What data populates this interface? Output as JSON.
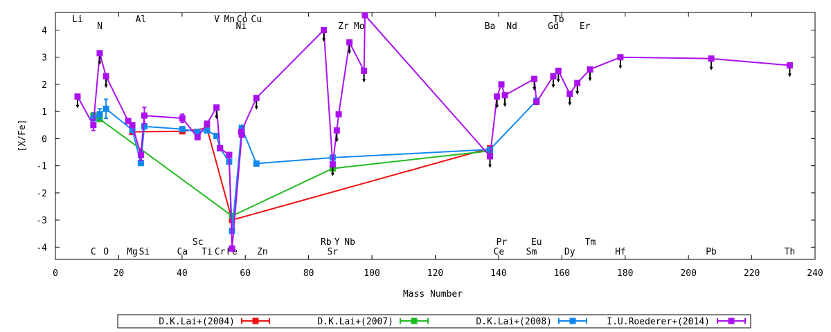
{
  "chart_data": {
    "type": "line",
    "xlabel": "Mass Number",
    "ylabel": "[X/Fe]",
    "xlim": [
      0,
      240
    ],
    "ylim": [
      -4.45,
      4.65
    ],
    "x_ticks": [
      0,
      20,
      40,
      60,
      80,
      100,
      120,
      140,
      160,
      180,
      200,
      220,
      240
    ],
    "y_ticks": [
      -4,
      -3,
      -2,
      -1,
      0,
      1,
      2,
      3,
      4
    ],
    "grid": false,
    "legend_position": "bottom",
    "element_labels_top": [
      {
        "label": "Li",
        "x": 7,
        "row": 1
      },
      {
        "label": "N",
        "x": 14,
        "row": 2
      },
      {
        "label": "Al",
        "x": 27,
        "row": 1
      },
      {
        "label": "V",
        "x": 51,
        "row": 1
      },
      {
        "label": "Mn",
        "x": 55,
        "row": 1
      },
      {
        "label": "Co",
        "x": 59,
        "row": 1
      },
      {
        "label": "Cu",
        "x": 63.5,
        "row": 1
      },
      {
        "label": "Ni",
        "x": 58.7,
        "row": 2
      },
      {
        "label": "Zr",
        "x": 91,
        "row": 2
      },
      {
        "label": "Mo",
        "x": 96,
        "row": 2
      },
      {
        "label": "Ba",
        "x": 137.3,
        "row": 2
      },
      {
        "label": "Nd",
        "x": 144.2,
        "row": 2
      },
      {
        "label": "Tb",
        "x": 159,
        "row": 1
      },
      {
        "label": "Gd",
        "x": 157.3,
        "row": 2
      },
      {
        "label": "Er",
        "x": 167.3,
        "row": 2
      }
    ],
    "element_labels_bottom": [
      {
        "label": "Sc",
        "x": 45,
        "row": 1
      },
      {
        "label": "Rb",
        "x": 85.5,
        "row": 1
      },
      {
        "label": "Y",
        "x": 89,
        "row": 1
      },
      {
        "label": "Nb",
        "x": 93,
        "row": 1
      },
      {
        "label": "Pr",
        "x": 141,
        "row": 1
      },
      {
        "label": "Eu",
        "x": 152,
        "row": 1
      },
      {
        "label": "Tm",
        "x": 169,
        "row": 1
      },
      {
        "label": "C",
        "x": 12,
        "row": 2
      },
      {
        "label": "O",
        "x": 16,
        "row": 2
      },
      {
        "label": "Mg",
        "x": 24.3,
        "row": 2
      },
      {
        "label": "Si",
        "x": 28.1,
        "row": 2
      },
      {
        "label": "Ca",
        "x": 40.1,
        "row": 2
      },
      {
        "label": "Ti",
        "x": 47.9,
        "row": 2
      },
      {
        "label": "Cr",
        "x": 52,
        "row": 2
      },
      {
        "label": "Fe",
        "x": 55.8,
        "row": 2
      },
      {
        "label": "Zn",
        "x": 65.4,
        "row": 2
      },
      {
        "label": "Sr",
        "x": 87.6,
        "row": 2
      },
      {
        "label": "Ce",
        "x": 140.1,
        "row": 2
      },
      {
        "label": "Sm",
        "x": 150.4,
        "row": 2
      },
      {
        "label": "Dy",
        "x": 162.5,
        "row": 2
      },
      {
        "label": "Hf",
        "x": 178.5,
        "row": 2
      },
      {
        "label": "Pb",
        "x": 207.2,
        "row": 2
      },
      {
        "label": "Th",
        "x": 232,
        "row": 2
      }
    ],
    "series": [
      {
        "name": "D.K.Lai+(2004)",
        "color": "#ee1111",
        "points": [
          {
            "x": 24.3,
            "y": 0.25
          },
          {
            "x": 40.1,
            "y": 0.27
          },
          {
            "x": 47.9,
            "y": 0.38
          },
          {
            "x": 55.8,
            "y": -3.0
          },
          {
            "x": 137.3,
            "y": -0.35
          }
        ]
      },
      {
        "name": "D.K.Lai+(2007)",
        "color": "#22bb22",
        "points": [
          {
            "x": 12,
            "y": 0.85
          },
          {
            "x": 14,
            "y": 0.72
          },
          {
            "x": 55.8,
            "y": -2.85
          },
          {
            "x": 87.6,
            "y": -1.1
          },
          {
            "x": 137.3,
            "y": -0.45
          }
        ]
      },
      {
        "name": "D.K.Lai+(2008)",
        "color": "#1188ee",
        "points": [
          {
            "x": 12,
            "y": 0.75,
            "err": 0.2
          },
          {
            "x": 14,
            "y": 0.9,
            "err": 0.2
          },
          {
            "x": 16,
            "y": 1.1,
            "err": 0.35
          },
          {
            "x": 24.3,
            "y": 0.32
          },
          {
            "x": 27,
            "y": -0.9
          },
          {
            "x": 28.1,
            "y": 0.45
          },
          {
            "x": 40.1,
            "y": 0.35
          },
          {
            "x": 44.9,
            "y": 0.25
          },
          {
            "x": 47.9,
            "y": 0.3
          },
          {
            "x": 50.9,
            "y": 0.1
          },
          {
            "x": 52,
            "y": -0.35
          },
          {
            "x": 54.9,
            "y": -0.85
          },
          {
            "x": 55.8,
            "y": -3.4
          },
          {
            "x": 58.9,
            "y": 0.4
          },
          {
            "x": 63.5,
            "y": -0.92
          },
          {
            "x": 87.6,
            "y": -0.7
          },
          {
            "x": 137.3,
            "y": -0.4
          },
          {
            "x": 152,
            "y": 1.4
          }
        ]
      },
      {
        "name": "I.U.Roederer+(2014)",
        "color": "#aa11ee",
        "points": [
          {
            "x": 7,
            "y": 1.55,
            "limit": true
          },
          {
            "x": 12,
            "y": 0.5,
            "err": 0.2
          },
          {
            "x": 14,
            "y": 3.15,
            "limit": true
          },
          {
            "x": 16,
            "y": 2.3,
            "limit": true
          },
          {
            "x": 23,
            "y": 0.65
          },
          {
            "x": 24.3,
            "y": 0.5
          },
          {
            "x": 27,
            "y": -0.6,
            "err": 0.2
          },
          {
            "x": 28.1,
            "y": 0.85,
            "err": 0.3
          },
          {
            "x": 40.1,
            "y": 0.75,
            "err": 0.15
          },
          {
            "x": 44.9,
            "y": 0.05
          },
          {
            "x": 47.9,
            "y": 0.55
          },
          {
            "x": 50.9,
            "y": 1.15,
            "limit": true
          },
          {
            "x": 52,
            "y": -0.35
          },
          {
            "x": 54.9,
            "y": -0.6
          },
          {
            "x": 55.8,
            "y": -4.05
          },
          {
            "x": 58.9,
            "y": 0.15
          },
          {
            "x": 58.7,
            "y": 0.25
          },
          {
            "x": 63.5,
            "y": 1.5,
            "limit": true
          },
          {
            "x": 84.8,
            "y": 4.0,
            "limit": true
          },
          {
            "x": 87.6,
            "y": -0.95,
            "limit": true
          },
          {
            "x": 88.9,
            "y": 0.3,
            "limit": true
          },
          {
            "x": 89.5,
            "y": 0.9
          },
          {
            "x": 92.9,
            "y": 3.55,
            "limit": true
          },
          {
            "x": 97.5,
            "y": 2.5,
            "limit": true
          },
          {
            "x": 97.8,
            "y": 4.55
          },
          {
            "x": 137.3,
            "y": -0.65,
            "limit": true
          },
          {
            "x": 139.5,
            "y": 1.55,
            "limit": true
          },
          {
            "x": 140.9,
            "y": 2.0
          },
          {
            "x": 142,
            "y": 1.6,
            "limit": true
          },
          {
            "x": 151.3,
            "y": 2.2,
            "limit": true
          },
          {
            "x": 152,
            "y": 1.35
          },
          {
            "x": 157.3,
            "y": 2.3,
            "limit": true
          },
          {
            "x": 158.9,
            "y": 2.5,
            "limit": true
          },
          {
            "x": 162.5,
            "y": 1.65,
            "limit": true
          },
          {
            "x": 164.9,
            "y": 2.05,
            "limit": true
          },
          {
            "x": 168.9,
            "y": 2.55,
            "limit": true
          },
          {
            "x": 178.5,
            "y": 3.0,
            "limit": true
          },
          {
            "x": 207.2,
            "y": 2.95,
            "limit": true
          },
          {
            "x": 232,
            "y": 2.7,
            "limit": true
          }
        ]
      }
    ]
  }
}
